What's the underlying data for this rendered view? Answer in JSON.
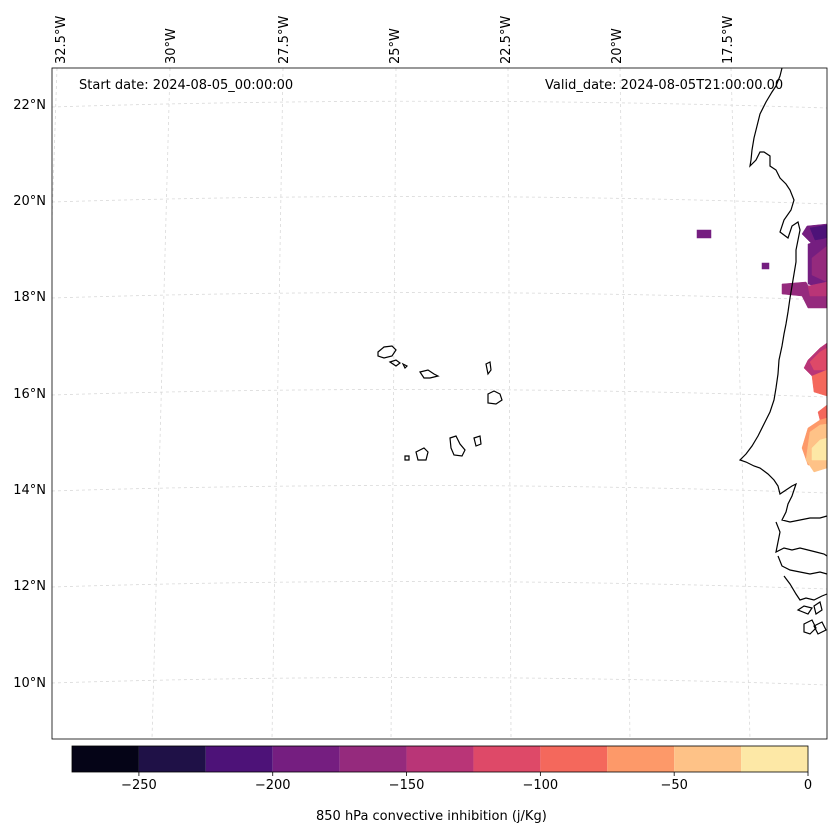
{
  "map": {
    "start_date_text": "Start date: 2024-08-05_00:00:00",
    "valid_date_text": "Valid_date: 2024-08-05T21:00:00.00",
    "latitude_labels": [
      "22°N",
      "20°N",
      "18°N",
      "16°N",
      "14°N",
      "12°N",
      "10°N"
    ],
    "longitude_labels": [
      "32.5°W",
      "30°W",
      "27.5°W",
      "25°W",
      "22.5°W",
      "20°W",
      "17.5°W"
    ],
    "gridline_color": "#d9d9d9",
    "coastline_color": "#000000"
  },
  "colorbar": {
    "label": "850 hPa convective inhibition (j/Kg)",
    "tick_labels": [
      "−250",
      "−200",
      "−150",
      "−100",
      "−50",
      "0"
    ],
    "levels": [
      -275,
      -250,
      -225,
      -200,
      -175,
      -150,
      -125,
      -100,
      -75,
      -50,
      -25,
      0
    ],
    "colors": [
      "#050417",
      "#1f1147",
      "#4d1278",
      "#751e80",
      "#952a7d",
      "#b93577",
      "#de4968",
      "#f4685c",
      "#fd9969",
      "#fec287",
      "#fde8a6"
    ]
  }
}
